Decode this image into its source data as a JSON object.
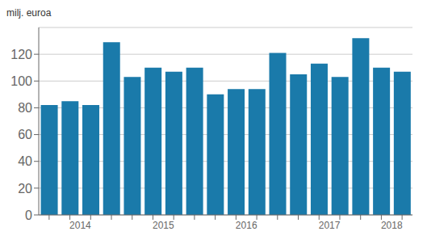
{
  "chart_data": {
    "type": "bar",
    "ylabel": "milj. euroa",
    "categories": [
      null,
      "2014",
      null,
      null,
      null,
      "2015",
      null,
      null,
      null,
      "2016",
      null,
      null,
      null,
      "2017",
      null,
      null,
      "2018",
      null
    ],
    "values": [
      82,
      85,
      82,
      129,
      103,
      110,
      107,
      110,
      90,
      94,
      94,
      121,
      105,
      113,
      103,
      132,
      110,
      107
    ],
    "color": "#1a7aaa",
    "ylim": [
      0,
      140
    ],
    "yticks": [
      0,
      20,
      40,
      60,
      80,
      100,
      120
    ],
    "grid": true
  }
}
